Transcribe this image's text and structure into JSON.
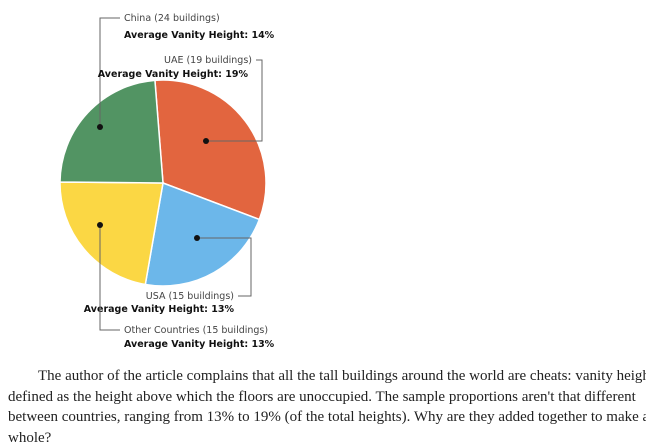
{
  "chart_data": {
    "type": "pie",
    "slices": [
      {
        "label": "UAE (19 buildings)",
        "detail": "Average Vanity Height: 19%",
        "value": 32,
        "color": "#e2653f"
      },
      {
        "label": "USA (15 buildings)",
        "detail": "Average Vanity Height: 13%",
        "value": 22,
        "color": "#6cb7ea"
      },
      {
        "label": "Other Countries (15 buildings)",
        "detail": "Average Vanity Height: 13%",
        "value": 22.4,
        "color": "#fbd744"
      },
      {
        "label": "China (24 buildings)",
        "detail": "Average Vanity Height: 14%",
        "value": 23.6,
        "color": "#529463"
      }
    ],
    "start_angle_deg": -4.5,
    "direction": "clockwise",
    "legend": "callout-labels"
  },
  "paragraph": {
    "lines": [
      "The author of the article complains that all the tall buildings around the world are cheats: vanity height is",
      "defined as the height above which the floors are unoccupied. The sample proportions aren't that different",
      "between countries, ranging from 13% to 19% (of the total heights). Why are they added together to make a",
      "whole?"
    ]
  }
}
